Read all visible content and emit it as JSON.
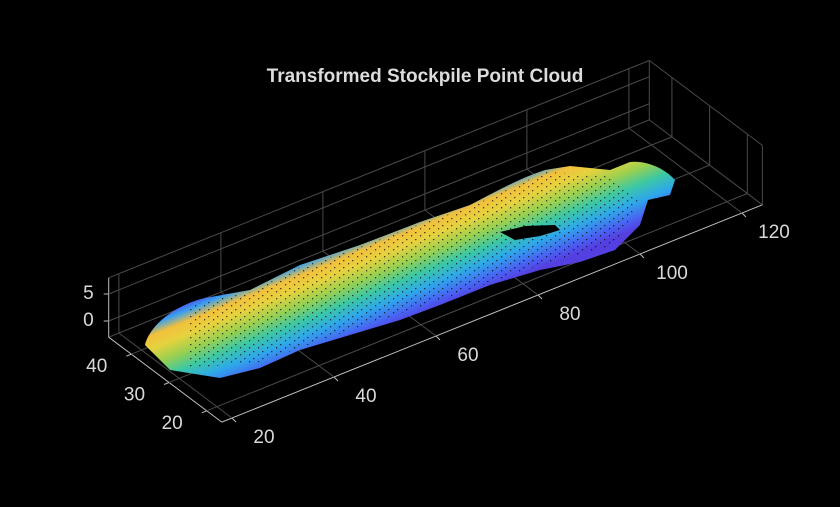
{
  "chart_data": {
    "type": "scatter3",
    "title": "Transformed Stockpile Point Cloud",
    "xlim": [
      18,
      124
    ],
    "xticks": [
      20,
      40,
      60,
      80,
      100,
      120
    ],
    "ylim": [
      16,
      46
    ],
    "yticks": [
      20,
      30,
      40
    ],
    "zlim": [
      -3,
      8
    ],
    "zticks": [
      0,
      5
    ],
    "grid": true
  }
}
